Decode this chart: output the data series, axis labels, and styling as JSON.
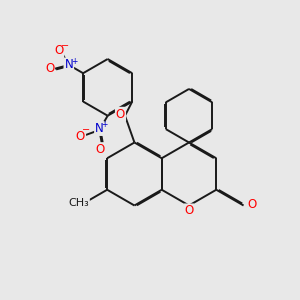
{
  "bg_color": "#e8e8e8",
  "bond_color": "#1a1a1a",
  "bond_width": 1.4,
  "dbo": 0.035,
  "atom_colors": {
    "O": "#ff0000",
    "N": "#0000cc"
  },
  "fs": 8.5
}
